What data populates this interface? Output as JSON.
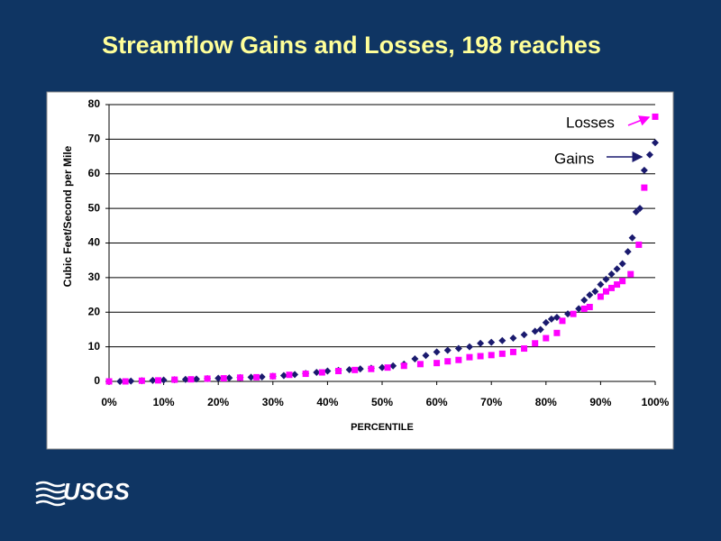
{
  "logo": "USGS",
  "chart_data": {
    "type": "scatter",
    "title": "Streamflow Gains and Losses, 198 reaches",
    "xlabel": "PERCENTILE",
    "ylabel": "Cubic Feet/Second per Mile",
    "xlim": [
      0,
      100
    ],
    "ylim": [
      0,
      80
    ],
    "xticks": [
      {
        "value": 0,
        "label": "0%"
      },
      {
        "value": 10,
        "label": "10%"
      },
      {
        "value": 20,
        "label": "20%"
      },
      {
        "value": 30,
        "label": "30%"
      },
      {
        "value": 40,
        "label": "40%"
      },
      {
        "value": 50,
        "label": "50%"
      },
      {
        "value": 60,
        "label": "60%"
      },
      {
        "value": 70,
        "label": "70%"
      },
      {
        "value": 80,
        "label": "80%"
      },
      {
        "value": 90,
        "label": "90%"
      },
      {
        "value": 100,
        "label": "100%"
      }
    ],
    "yticks": [
      0,
      10,
      20,
      30,
      40,
      50,
      60,
      70,
      80
    ],
    "grid": true,
    "annotations": [
      {
        "text": "Losses"
      },
      {
        "text": "Gains"
      }
    ],
    "series": [
      {
        "name": "Gains",
        "color": "#1a1a6e",
        "marker": "diamond",
        "x": [
          0,
          2,
          4,
          6,
          8,
          10,
          12,
          14,
          16,
          18,
          20,
          22,
          24,
          26,
          28,
          30,
          32,
          34,
          36,
          38,
          40,
          42,
          44,
          46,
          48,
          50,
          52,
          54,
          56,
          58,
          60,
          62,
          64,
          66,
          68,
          70,
          72,
          74,
          76,
          78,
          79,
          80,
          81,
          82,
          84,
          86,
          87,
          88,
          89,
          90,
          91,
          92,
          93,
          94,
          95,
          95.8,
          96.5,
          97.2,
          98,
          99,
          100
        ],
        "values": [
          0,
          0,
          0.1,
          0.2,
          0.3,
          0.4,
          0.5,
          0.6,
          0.7,
          0.8,
          0.9,
          1.0,
          1.1,
          1.2,
          1.3,
          1.5,
          1.7,
          2.0,
          2.3,
          2.6,
          3.0,
          3.2,
          3.4,
          3.6,
          3.8,
          4.0,
          4.5,
          5.0,
          6.5,
          7.5,
          8.5,
          9.0,
          9.5,
          10,
          11,
          11.3,
          11.8,
          12.5,
          13.5,
          14.5,
          15,
          17,
          18,
          18.5,
          19.5,
          21,
          23.5,
          25,
          26,
          28,
          29.5,
          31,
          32.5,
          34,
          37.5,
          41.5,
          49,
          50,
          61,
          65.5,
          69
        ]
      },
      {
        "name": "Losses",
        "color": "#ff00ff",
        "marker": "square",
        "x": [
          0,
          3,
          6,
          9,
          12,
          15,
          18,
          21,
          24,
          27,
          30,
          33,
          36,
          39,
          42,
          45,
          48,
          51,
          54,
          57,
          60,
          62,
          64,
          66,
          68,
          70,
          72,
          74,
          76,
          78,
          80,
          82,
          83,
          85,
          87,
          88,
          90,
          91,
          92,
          93,
          94,
          95.5,
          97,
          98,
          100
        ],
        "values": [
          0,
          0,
          0.2,
          0.3,
          0.5,
          0.6,
          0.8,
          0.9,
          1.1,
          1.2,
          1.5,
          1.9,
          2.2,
          2.6,
          3.0,
          3.3,
          3.6,
          4.0,
          4.5,
          5.0,
          5.3,
          5.8,
          6.2,
          7.0,
          7.3,
          7.6,
          8.0,
          8.5,
          9.5,
          11,
          12.5,
          14,
          17.5,
          19.5,
          21,
          21.5,
          24.5,
          26,
          27,
          28,
          29,
          31,
          39.5,
          56,
          76.5
        ]
      }
    ]
  }
}
